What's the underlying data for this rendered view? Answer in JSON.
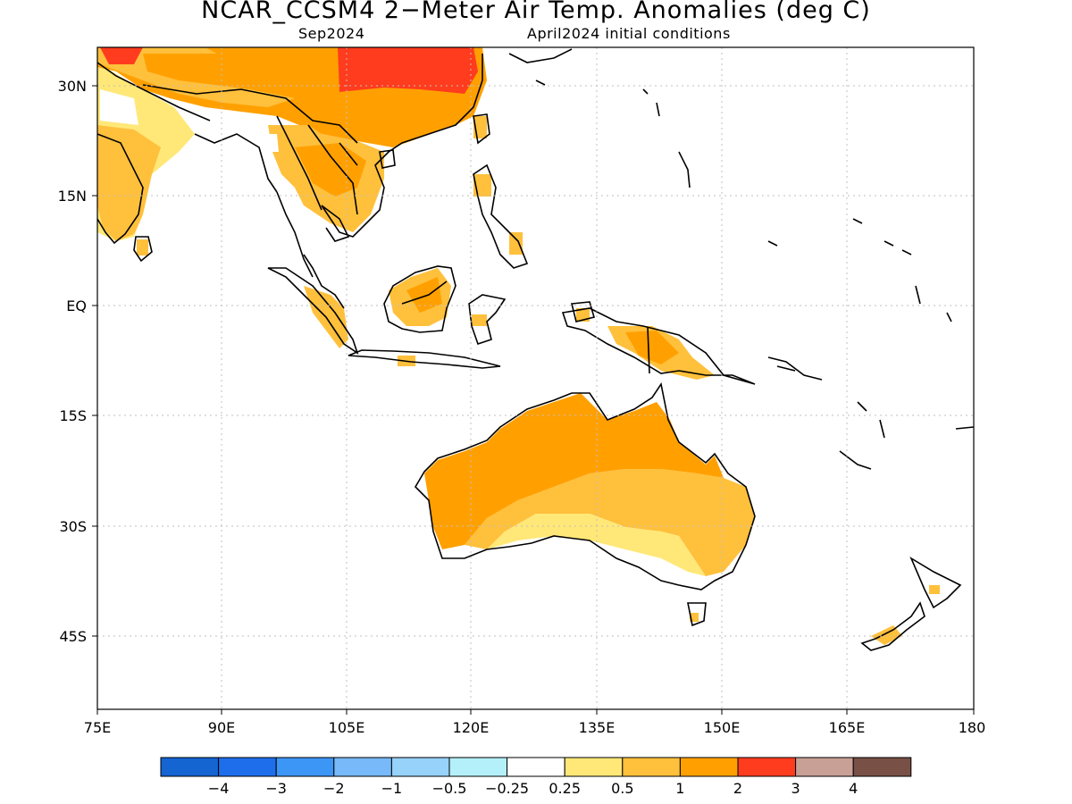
{
  "header": {
    "title": "NCAR_CCSM4 2−Meter Air Temp. Anomalies (deg C)",
    "valid_month": "Sep2024",
    "initial_conditions": "April2024 initial conditions"
  },
  "axes": {
    "lon_labels": [
      "75E",
      "90E",
      "105E",
      "120E",
      "135E",
      "150E",
      "165E",
      "180"
    ],
    "lat_labels": [
      "30N",
      "15N",
      "EQ",
      "15S",
      "30S",
      "45S"
    ]
  },
  "colorbar": {
    "boundary_labels": [
      "−4",
      "−3",
      "−2",
      "−1",
      "−0.5",
      "−0.25",
      "0.25",
      "0.5",
      "1",
      "2",
      "3",
      "4"
    ],
    "colors": [
      "#1464d2",
      "#1e6eeb",
      "#3c96f5",
      "#78b9fa",
      "#96d2fa",
      "#b4f0fa",
      "#ffffff",
      "#ffe878",
      "#ffc03c",
      "#ffa000",
      "#ff3c1e",
      "#c8a096",
      "#785046"
    ]
  },
  "map": {
    "region": "Indo-Pacific / Australia",
    "grid": true,
    "land_outline_color": "#000000",
    "anomaly_colors": {
      "0.25-0.5": "#ffe878",
      "0.5-1": "#ffc03c",
      "1-2": "#ffa000",
      "2-3": "#ff3c1e"
    }
  }
}
